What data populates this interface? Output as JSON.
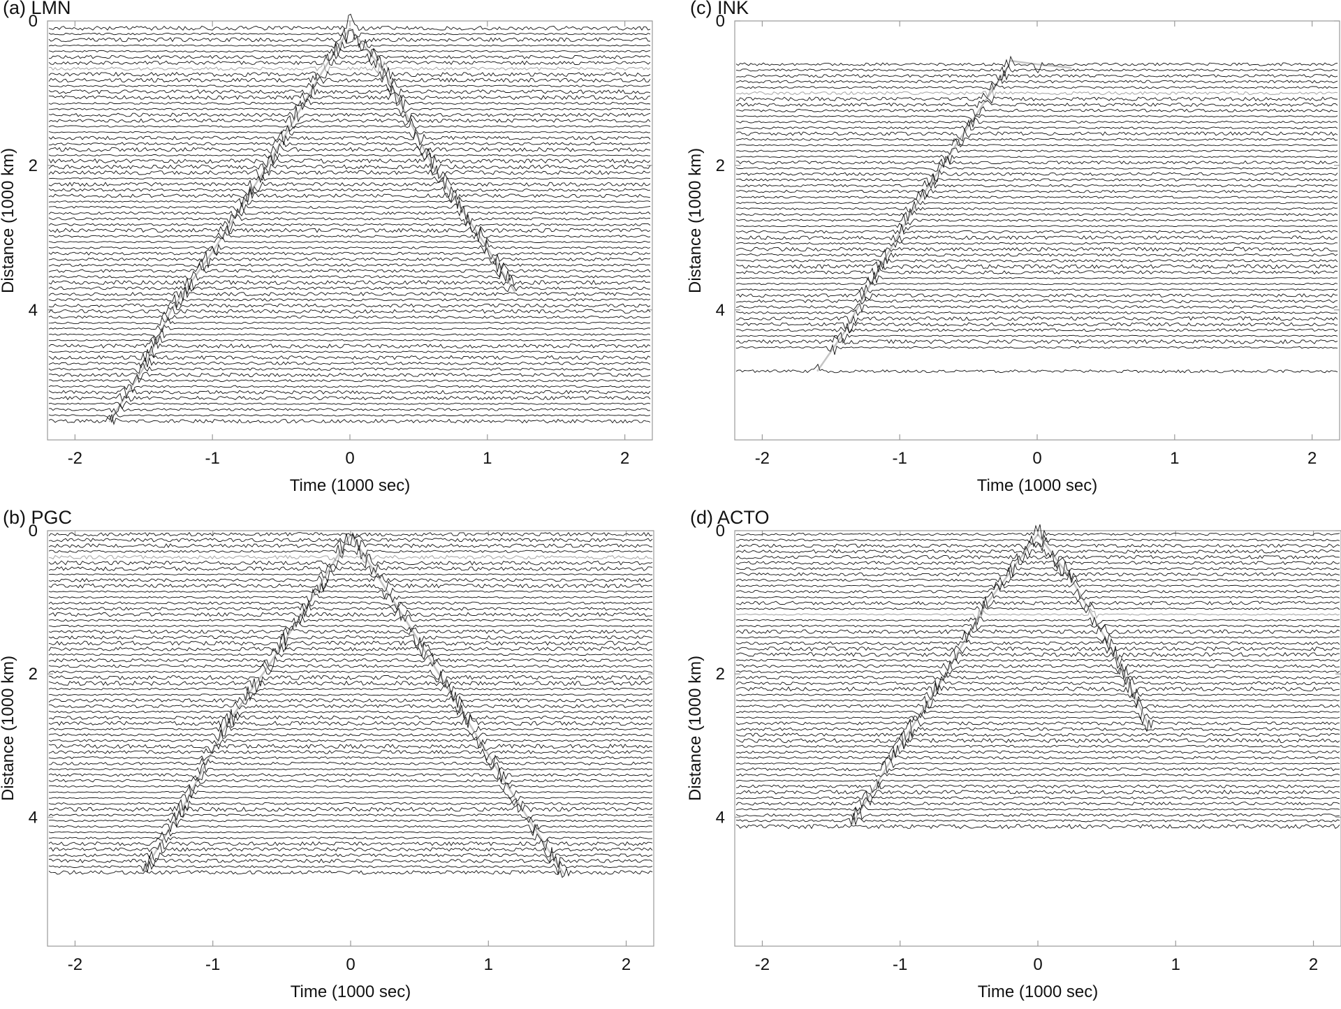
{
  "chart_data": [
    {
      "id": "a",
      "type": "line",
      "title": "(a) LMN",
      "xlabel": "Time (1000 sec)",
      "ylabel": "Distance (1000 km)",
      "xlim": [
        -2.2,
        2.2
      ],
      "ylim": [
        0,
        5.8
      ],
      "y_inverted": true,
      "xticks": [
        -2,
        -1,
        0,
        1,
        2
      ],
      "yticks": [
        0,
        2,
        4
      ],
      "trace_distances": [
        0.1,
        0.18,
        0.26,
        0.34,
        0.42,
        0.5,
        0.58,
        0.66,
        0.74,
        0.82,
        0.9,
        0.98,
        1.06,
        1.14,
        1.22,
        1.3,
        1.38,
        1.46,
        1.54,
        1.62,
        1.7,
        1.78,
        1.86,
        1.94,
        2.02,
        2.1,
        2.18,
        2.26,
        2.34,
        2.42,
        2.5,
        2.58,
        2.66,
        2.74,
        2.82,
        2.9,
        2.98,
        3.06,
        3.14,
        3.22,
        3.3,
        3.38,
        3.46,
        3.54,
        3.62,
        3.7,
        3.78,
        3.86,
        3.94,
        4.02,
        4.1,
        4.18,
        4.26,
        4.34,
        4.42,
        4.5,
        4.58,
        4.66,
        4.74,
        4.82,
        4.9,
        4.98,
        5.06,
        5.14,
        5.22,
        5.3,
        5.38,
        5.46,
        5.54
      ],
      "series": [
        {
          "branch": "negative-time",
          "x": [
            0.0,
            -0.2,
            -0.6,
            -1.0,
            -1.3,
            -1.5,
            -1.75
          ],
          "y": [
            0.1,
            0.7,
            2.0,
            3.2,
            4.0,
            4.8,
            5.55
          ]
        },
        {
          "branch": "positive-time",
          "x": [
            0.0,
            0.25,
            0.6,
            0.95,
            1.2
          ],
          "y": [
            0.1,
            0.7,
            2.0,
            3.0,
            3.75
          ]
        }
      ]
    },
    {
      "id": "b",
      "type": "line",
      "title": "(b) PGC",
      "xlabel": "Time (1000 sec)",
      "ylabel": "Distance (1000 km)",
      "xlim": [
        -2.2,
        2.2
      ],
      "ylim": [
        0,
        5.8
      ],
      "y_inverted": true,
      "xticks": [
        -2,
        -1,
        0,
        1,
        2
      ],
      "yticks": [
        0,
        2,
        4
      ],
      "trace_distances": [
        0.05,
        0.13,
        0.21,
        0.29,
        0.37,
        0.45,
        0.53,
        0.61,
        0.69,
        0.77,
        0.85,
        0.93,
        1.01,
        1.09,
        1.17,
        1.25,
        1.33,
        1.41,
        1.49,
        1.57,
        1.65,
        1.73,
        1.81,
        1.89,
        1.97,
        2.05,
        2.13,
        2.21,
        2.29,
        2.37,
        2.45,
        2.53,
        2.61,
        2.69,
        2.77,
        2.85,
        2.93,
        3.01,
        3.09,
        3.17,
        3.25,
        3.33,
        3.41,
        3.49,
        3.57,
        3.65,
        3.73,
        3.81,
        3.89,
        3.97,
        4.05,
        4.13,
        4.21,
        4.29,
        4.37,
        4.45,
        4.53,
        4.61,
        4.69,
        4.77
      ],
      "series": [
        {
          "branch": "negative-time",
          "x": [
            0.0,
            -0.3,
            -0.6,
            -0.9,
            -1.2,
            -1.5
          ],
          "y": [
            0.05,
            1.0,
            1.9,
            2.7,
            3.8,
            4.75
          ]
        },
        {
          "branch": "positive-time",
          "x": [
            0.0,
            0.45,
            0.8,
            1.15,
            1.55
          ],
          "y": [
            0.05,
            1.4,
            2.5,
            3.6,
            4.8
          ]
        }
      ]
    },
    {
      "id": "c",
      "type": "line",
      "title": "(c) INK",
      "xlabel": "Time (1000 sec)",
      "ylabel": "Distance (1000 km)",
      "xlim": [
        -2.2,
        2.2
      ],
      "ylim": [
        0,
        5.8
      ],
      "y_inverted": true,
      "xticks": [
        -2,
        -1,
        0,
        1,
        2
      ],
      "yticks": [
        0,
        2,
        4
      ],
      "trace_distances": [
        0.6,
        0.68,
        0.76,
        0.84,
        0.92,
        1.0,
        1.08,
        1.16,
        1.24,
        1.32,
        1.4,
        1.48,
        1.56,
        1.64,
        1.72,
        1.8,
        1.88,
        1.96,
        2.04,
        2.12,
        2.2,
        2.28,
        2.36,
        2.44,
        2.52,
        2.6,
        2.68,
        2.76,
        2.84,
        2.92,
        3.0,
        3.08,
        3.16,
        3.24,
        3.32,
        3.4,
        3.48,
        3.56,
        3.64,
        3.72,
        3.8,
        3.88,
        3.96,
        4.04,
        4.12,
        4.2,
        4.28,
        4.36,
        4.44,
        4.52,
        4.85
      ],
      "series": [
        {
          "branch": "negative-time",
          "x": [
            -0.2,
            -0.55,
            -0.9,
            -1.2,
            -1.4,
            -1.6
          ],
          "y": [
            0.6,
            1.6,
            2.6,
            3.6,
            4.3,
            4.85
          ]
        },
        {
          "branch": "positive-time",
          "x": [
            -0.2,
            0.0,
            0.25
          ],
          "y": [
            0.55,
            0.6,
            0.65
          ]
        }
      ]
    },
    {
      "id": "d",
      "type": "line",
      "title": "(d) ACTO",
      "xlabel": "Time (1000 sec)",
      "ylabel": "Distance (1000 km)",
      "xlim": [
        -2.2,
        2.2
      ],
      "ylim": [
        0,
        5.8
      ],
      "y_inverted": true,
      "xticks": [
        -2,
        -1,
        0,
        1,
        2
      ],
      "yticks": [
        0,
        2,
        4
      ],
      "trace_distances": [
        0.05,
        0.13,
        0.21,
        0.29,
        0.37,
        0.45,
        0.53,
        0.61,
        0.69,
        0.77,
        0.85,
        0.93,
        1.01,
        1.09,
        1.17,
        1.25,
        1.33,
        1.41,
        1.49,
        1.57,
        1.65,
        1.73,
        1.81,
        1.89,
        1.97,
        2.05,
        2.13,
        2.21,
        2.29,
        2.37,
        2.45,
        2.53,
        2.61,
        2.69,
        2.77,
        2.85,
        2.93,
        3.01,
        3.09,
        3.17,
        3.25,
        3.33,
        3.41,
        3.49,
        3.57,
        3.65,
        3.73,
        3.81,
        3.89,
        3.97,
        4.05,
        4.13
      ],
      "series": [
        {
          "branch": "negative-time",
          "x": [
            0.0,
            -0.4,
            -0.7,
            -1.0,
            -1.35
          ],
          "y": [
            0.05,
            1.1,
            2.1,
            3.0,
            4.1
          ]
        },
        {
          "branch": "positive-time",
          "x": [
            0.0,
            0.25,
            0.55,
            0.8
          ],
          "y": [
            0.05,
            0.7,
            1.7,
            2.7
          ]
        }
      ]
    }
  ]
}
